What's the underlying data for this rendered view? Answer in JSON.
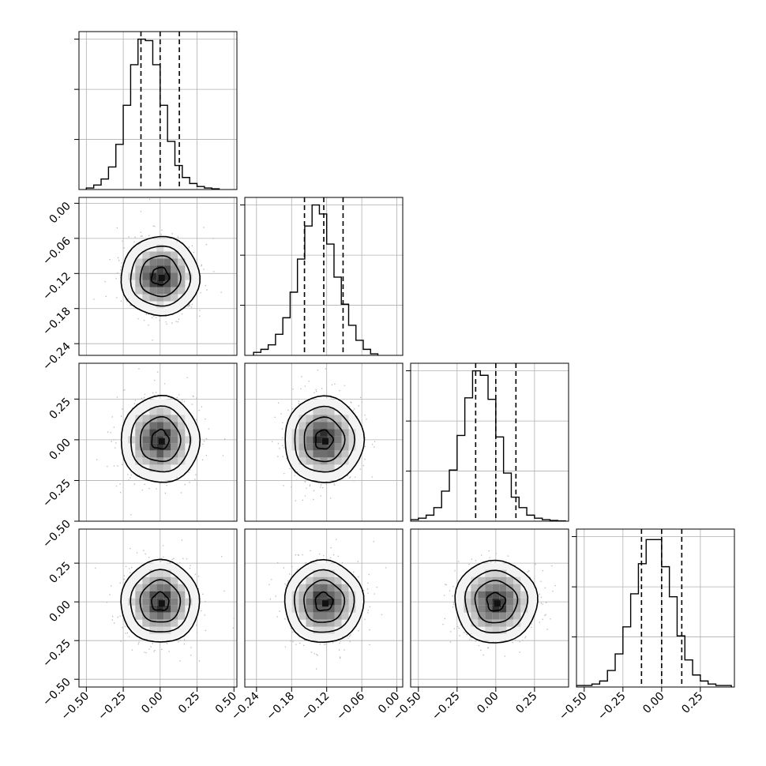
{
  "figure": {
    "kind": "corner plot",
    "grid": true,
    "background": "#ffffff",
    "colors": {
      "hist_line": "#000000",
      "contour": "#000000",
      "scatter": "#b8b8b8",
      "grid": "#b0b0b0",
      "density_light": "#f3f3f3",
      "density_dark": "#111111"
    }
  },
  "chart_data": [
    {
      "type": "histogram",
      "panel": "param-1",
      "x_ticks": [
        "−0.50",
        "−0.25",
        "0.00",
        "0.25",
        "0.50"
      ],
      "xlim": [
        -0.55,
        0.52
      ],
      "ylim": [
        0,
        1.05
      ],
      "bin_edges_start": -0.5,
      "bin_width": 0.05,
      "counts": [
        0.01,
        0.03,
        0.07,
        0.15,
        0.3,
        0.56,
        0.83,
        1.0,
        0.99,
        0.83,
        0.56,
        0.32,
        0.16,
        0.08,
        0.04,
        0.02,
        0.01,
        0.005
      ],
      "quantiles": [
        -0.13,
        0.0,
        0.13
      ]
    },
    {
      "type": "histogram",
      "panel": "param-2",
      "x_ticks": [
        "−0.24",
        "−0.18",
        "−0.12",
        "−0.06",
        "0.00"
      ],
      "xlim": [
        -0.26,
        0.01
      ],
      "ylim": [
        0,
        1.05
      ],
      "bin_edges_start": -0.245,
      "bin_width": 0.0125,
      "counts": [
        0.02,
        0.04,
        0.07,
        0.14,
        0.25,
        0.42,
        0.64,
        0.86,
        1.0,
        0.94,
        0.74,
        0.52,
        0.34,
        0.2,
        0.1,
        0.04,
        0.01
      ],
      "quantiles": [
        -0.158,
        -0.125,
        -0.092
      ]
    },
    {
      "type": "histogram",
      "panel": "param-3",
      "x_ticks": [
        "−0.50",
        "−0.25",
        "0.00",
        "0.25"
      ],
      "xlim": [
        -0.55,
        0.47
      ],
      "ylim": [
        0,
        1.05
      ],
      "bin_edges_start": -0.55,
      "bin_width": 0.05,
      "counts": [
        0.01,
        0.02,
        0.04,
        0.09,
        0.2,
        0.34,
        0.57,
        0.82,
        1.0,
        0.97,
        0.81,
        0.56,
        0.32,
        0.16,
        0.09,
        0.04,
        0.02,
        0.01,
        0.005,
        0.002
      ],
      "quantiles": [
        -0.13,
        0.0,
        0.13
      ]
    },
    {
      "type": "histogram",
      "panel": "param-4",
      "x_ticks": [
        "−0.50",
        "−0.25",
        "0.00",
        "0.25"
      ],
      "xlim": [
        -0.55,
        0.47
      ],
      "ylim": [
        0,
        1.05
      ],
      "bin_edges_start": -0.55,
      "bin_width": 0.05,
      "counts": [
        0.01,
        0.01,
        0.02,
        0.04,
        0.11,
        0.22,
        0.4,
        0.62,
        0.82,
        0.98,
        0.98,
        0.8,
        0.6,
        0.34,
        0.18,
        0.08,
        0.04,
        0.02,
        0.01,
        0.01
      ],
      "quantiles": [
        -0.13,
        0.0,
        0.13
      ]
    },
    {
      "type": "scatter",
      "panel": "param-1 vs param-2",
      "x_ticks": [
        "−0.50",
        "−0.25",
        "0.00",
        "0.25",
        "0.50"
      ],
      "y_ticks": [
        "0.00",
        "−0.06",
        "−0.12",
        "−0.18",
        "−0.24"
      ],
      "xlim": [
        -0.55,
        0.52
      ],
      "ylim": [
        -0.26,
        0.01
      ],
      "center": [
        0.0,
        -0.125
      ],
      "spread": [
        0.13,
        0.033
      ]
    },
    {
      "type": "scatter",
      "panel": "param-1 vs param-3",
      "x_ticks": [
        "−0.50",
        "−0.25",
        "0.00",
        "0.25",
        "0.50"
      ],
      "y_ticks": [
        "0.25",
        "0.00",
        "−0.25",
        "−0.50"
      ],
      "xlim": [
        -0.55,
        0.52
      ],
      "ylim": [
        -0.5,
        0.47
      ],
      "center": [
        0.0,
        0.0
      ],
      "spread": [
        0.13,
        0.13
      ]
    },
    {
      "type": "scatter",
      "panel": "param-2 vs param-3",
      "x_ticks": [
        "−0.24",
        "−0.18",
        "−0.12",
        "−0.06",
        "0.00"
      ],
      "y_ticks": [
        "0.25",
        "0.00",
        "−0.25",
        "−0.50"
      ],
      "xlim": [
        -0.26,
        0.01
      ],
      "ylim": [
        -0.5,
        0.47
      ],
      "center": [
        -0.125,
        0.0
      ],
      "spread": [
        0.033,
        0.13
      ]
    },
    {
      "type": "scatter",
      "panel": "param-1 vs param-4",
      "x_ticks": [
        "−0.50",
        "−0.25",
        "0.00",
        "0.25",
        "0.50"
      ],
      "y_ticks": [
        "0.25",
        "0.00",
        "−0.25",
        "−0.50"
      ],
      "xlim": [
        -0.55,
        0.52
      ],
      "ylim": [
        -0.55,
        0.47
      ],
      "center": [
        0.0,
        0.0
      ],
      "spread": [
        0.13,
        0.13
      ]
    },
    {
      "type": "scatter",
      "panel": "param-2 vs param-4",
      "x_ticks": [
        "−0.24",
        "−0.18",
        "−0.12",
        "−0.06",
        "0.00"
      ],
      "y_ticks": [
        "0.25",
        "0.00",
        "−0.25",
        "−0.50"
      ],
      "xlim": [
        -0.26,
        0.01
      ],
      "ylim": [
        -0.55,
        0.47
      ],
      "center": [
        -0.125,
        0.0
      ],
      "spread": [
        0.033,
        0.13
      ]
    },
    {
      "type": "scatter",
      "panel": "param-3 vs param-4",
      "x_ticks": [
        "−0.50",
        "−0.25",
        "0.00",
        "0.25"
      ],
      "y_ticks": [
        "0.25",
        "0.00",
        "−0.25",
        "−0.50"
      ],
      "xlim": [
        -0.55,
        0.47
      ],
      "ylim": [
        -0.55,
        0.47
      ],
      "center": [
        0.0,
        0.0
      ],
      "spread": [
        0.13,
        0.13
      ]
    }
  ]
}
